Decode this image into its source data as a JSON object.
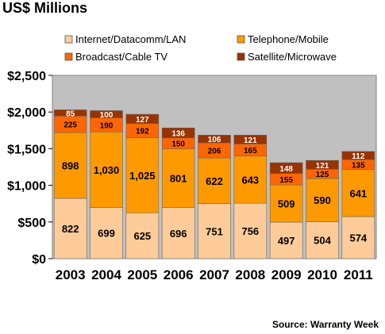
{
  "chart_data": {
    "type": "bar",
    "stacked": true,
    "title": "US$ Millions",
    "source": "Source: Warranty Week",
    "categories": [
      "2003",
      "2004",
      "2005",
      "2006",
      "2007",
      "2008",
      "2009",
      "2010",
      "2011"
    ],
    "series": [
      {
        "name": "Internet/Datacomm/LAN",
        "color": "#ffcc99",
        "values": [
          822,
          699,
          625,
          696,
          751,
          756,
          497,
          504,
          574
        ]
      },
      {
        "name": "Telephone/Mobile",
        "color": "#ff9900",
        "values": [
          898,
          1030,
          1025,
          801,
          622,
          643,
          509,
          590,
          641
        ]
      },
      {
        "name": "Broadcast/Cable TV",
        "color": "#ff6600",
        "values": [
          225,
          190,
          192,
          150,
          206,
          165,
          155,
          125,
          135
        ]
      },
      {
        "name": "Satellite/Microwave",
        "color": "#993300",
        "values": [
          85,
          100,
          127,
          136,
          106,
          121,
          148,
          121,
          112
        ]
      }
    ],
    "data_labels": [
      [
        "822",
        "699",
        "625",
        "696",
        "751",
        "756",
        "497",
        "504",
        "574"
      ],
      [
        "898",
        "1,030",
        "1,025",
        "801",
        "622",
        "643",
        "509",
        "590",
        "641"
      ],
      [
        "225",
        "190",
        "192",
        "150",
        "206",
        "165",
        "155",
        "125",
        "135"
      ],
      [
        "85",
        "100",
        "127",
        "136",
        "106",
        "121",
        "148",
        "121",
        "112"
      ]
    ],
    "yticks": [
      "$0",
      "$500",
      "$1,000",
      "$1,500",
      "$2,000",
      "$2,500"
    ],
    "ylim": [
      0,
      2500
    ],
    "ytick_step": 500,
    "legend_position": "top",
    "grid": false,
    "plot_background": "#c0c0c0"
  }
}
